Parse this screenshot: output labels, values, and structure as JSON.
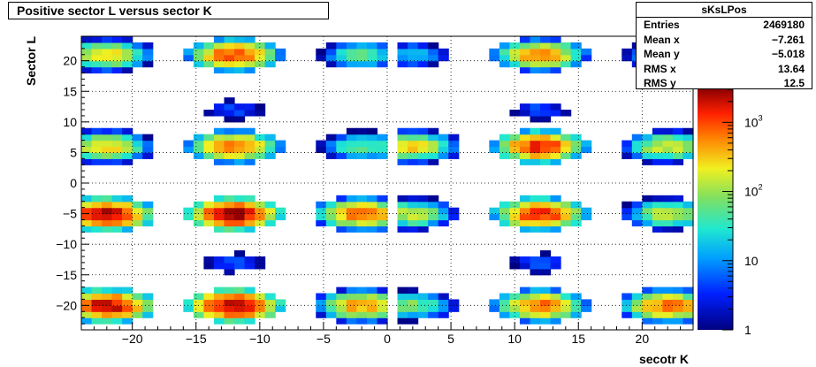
{
  "title": "Positive sector L versus sector K",
  "stats": {
    "name": "sKsLPos",
    "rows": [
      {
        "label": "Entries",
        "value": "2469180"
      },
      {
        "label": "Mean x",
        "value": "−7.261"
      },
      {
        "label": "Mean y",
        "value": "−5.018"
      },
      {
        "label": "RMS x",
        "value": "13.64"
      },
      {
        "label": "RMS y",
        "value": "12.5"
      }
    ]
  },
  "chart_data": {
    "type": "heatmap",
    "title": "Positive sector L versus sector K",
    "xlabel": "secotr K",
    "ylabel": "Sector L",
    "xlim": [
      -24,
      24
    ],
    "ylim": [
      -24,
      24
    ],
    "xticks": [
      -20,
      -15,
      -10,
      -5,
      0,
      5,
      10,
      15,
      20
    ],
    "yticks": [
      -20,
      -15,
      -10,
      -5,
      0,
      5,
      10,
      15,
      20
    ],
    "grid": true,
    "color_scale": "log",
    "zlim": [
      1,
      3000
    ],
    "colorbar_ticks": [
      {
        "value": 1,
        "label": "1"
      },
      {
        "value": 10,
        "label": "10"
      },
      {
        "value": 100,
        "label": "10",
        "exponent": "2"
      },
      {
        "value": 1000,
        "label": "10",
        "exponent": "3"
      }
    ],
    "blob_peaks": [
      {
        "y": 21,
        "x": -22,
        "peak": 300
      },
      {
        "y": 21,
        "x": -12,
        "peak": 1000
      },
      {
        "y": 21,
        "x": -2,
        "peak": 60
      },
      {
        "y": 21,
        "x": 2,
        "peak": 20
      },
      {
        "y": 21,
        "x": 12,
        "peak": 600
      },
      {
        "y": 21,
        "x": 22,
        "peak": 60
      },
      {
        "y": 6,
        "x": -22,
        "peak": 300
      },
      {
        "y": 6,
        "x": -12,
        "peak": 800
      },
      {
        "y": 6,
        "x": -2,
        "peak": 60
      },
      {
        "y": 6,
        "x": 2,
        "peak": 300
      },
      {
        "y": 6,
        "x": 12,
        "peak": 1500
      },
      {
        "y": 6,
        "x": 22,
        "peak": 200
      },
      {
        "y": -5,
        "x": -22,
        "peak": 2500
      },
      {
        "y": -5,
        "x": -12,
        "peak": 3000
      },
      {
        "y": -5,
        "x": -2,
        "peak": 800
      },
      {
        "y": -5,
        "x": 2,
        "peak": 150
      },
      {
        "y": -5,
        "x": 12,
        "peak": 1500
      },
      {
        "y": -5,
        "x": 22,
        "peak": 150
      },
      {
        "y": -20,
        "x": -22,
        "peak": 2500
      },
      {
        "y": -20,
        "x": -12,
        "peak": 3000
      },
      {
        "y": -20,
        "x": -2,
        "peak": 500
      },
      {
        "y": -20,
        "x": 2,
        "peak": 80
      },
      {
        "y": -20,
        "x": 12,
        "peak": 800
      },
      {
        "y": -20,
        "x": 22,
        "peak": 800
      },
      {
        "y": 12,
        "x": -12,
        "peak": 5
      },
      {
        "y": -13,
        "x": -12,
        "peak": 5
      },
      {
        "y": 12,
        "x": 12,
        "peak": 5
      },
      {
        "y": -13,
        "x": 12,
        "peak": 5
      }
    ]
  }
}
